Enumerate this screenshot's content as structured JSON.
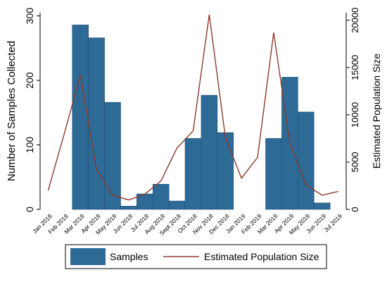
{
  "chart_data": {
    "type": "bar",
    "categories": [
      "Jan 2018",
      "Feb 2018",
      "Mar 2018",
      "Apr 2018",
      "May 2018",
      "Jun 2018",
      "Jul 2018",
      "Aug 2018",
      "Sept 2018",
      "Oct 2018",
      "Nov 2018",
      "Dec 2018",
      "Jan 2019",
      "Feb 2019",
      "Mar 2019",
      "Apr 2019",
      "May 2019",
      "Jun 2019",
      "Jul 2019"
    ],
    "ylabel": "Number of Samples Collected",
    "y2label": "Estimated Population Size",
    "ylim": [
      0,
      305
    ],
    "y2lim": [
      0,
      20800
    ],
    "yticks": [
      0,
      100,
      200,
      300
    ],
    "y2ticks": [
      0,
      5000,
      10000,
      15000,
      20000
    ],
    "series": [
      {
        "name": "Samples",
        "type": "bar",
        "axis": "left",
        "color": "#2d6a96",
        "values": [
          0,
          0,
          286,
          266,
          166,
          5,
          24,
          39,
          13,
          110,
          177,
          119,
          0,
          0,
          110,
          205,
          151,
          10,
          0
        ]
      },
      {
        "name": "Estimated Population Size",
        "type": "line",
        "axis": "right",
        "color": "#8b3a2b",
        "values": [
          2000,
          8000,
          14200,
          4200,
          1500,
          1000,
          1600,
          3000,
          6500,
          8300,
          20600,
          7600,
          3300,
          5500,
          18700,
          7000,
          2600,
          1500,
          1900
        ]
      }
    ],
    "grid": false,
    "legend_position": "bottom"
  }
}
